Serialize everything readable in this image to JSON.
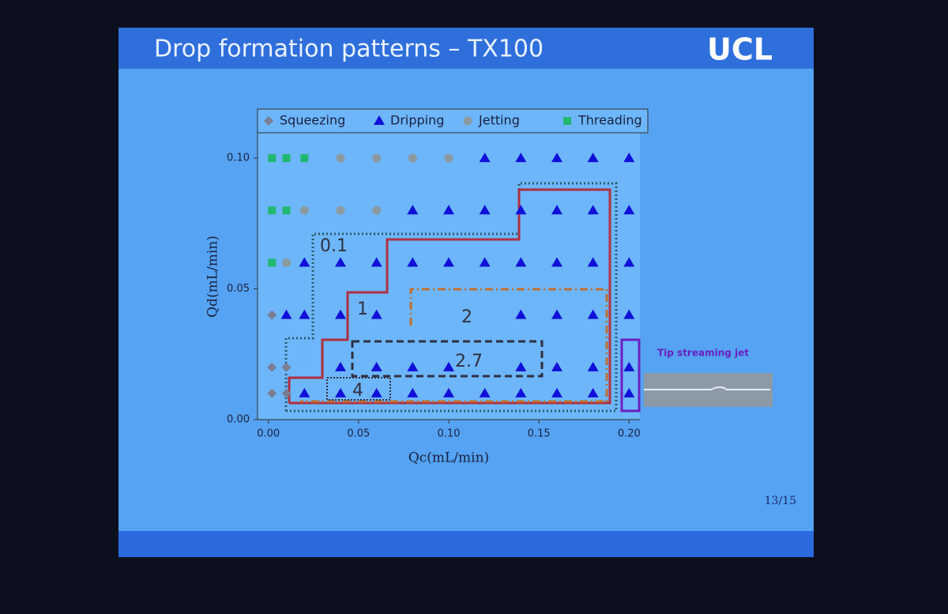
{
  "slide": {
    "title": "Drop formation patterns – TX100",
    "logo": "UCL",
    "page": "13/15",
    "annotation": "Tip streaming jet"
  },
  "chart_data": {
    "type": "scatter",
    "xlabel": "Qc(mL/min)",
    "ylabel": "Qd(mL/min)",
    "xlim": [
      -0.006,
      0.206
    ],
    "ylim": [
      0,
      0.11
    ],
    "xticks": [
      {
        "value": 0,
        "label": "0.00"
      },
      {
        "value": 0.05,
        "label": "0.05"
      },
      {
        "value": 0.1,
        "label": "0.10"
      },
      {
        "value": 0.15,
        "label": "0.15"
      },
      {
        "value": 0.2,
        "label": "0.20"
      }
    ],
    "yticks": [
      {
        "value": 0,
        "label": "0.00"
      },
      {
        "value": 0.05,
        "label": "0.05"
      },
      {
        "value": 0.1,
        "label": "0.10"
      }
    ],
    "legend": "top",
    "region_labels": [
      "0.1",
      "1",
      "2",
      "2.7",
      "4"
    ],
    "series": [
      {
        "name": "Squeezing",
        "color": "#7a7f95",
        "marker": "diamond",
        "x": [
          0.002,
          0.002,
          0.01,
          0.002,
          0.01
        ],
        "values": [
          0.04,
          0.02,
          0.02,
          0.01,
          0.01
        ]
      },
      {
        "name": "Dripping",
        "color": "#1010d8",
        "marker": "triangle",
        "x": [
          0.12,
          0.14,
          0.16,
          0.18,
          0.2,
          0.08,
          0.1,
          0.12,
          0.14,
          0.16,
          0.18,
          0.2,
          0.02,
          0.04,
          0.06,
          0.08,
          0.1,
          0.12,
          0.14,
          0.16,
          0.18,
          0.2,
          0.01,
          0.02,
          0.04,
          0.06,
          0.14,
          0.16,
          0.18,
          0.2,
          0.04,
          0.06,
          0.08,
          0.1,
          0.14,
          0.16,
          0.18,
          0.2,
          0.02,
          0.04,
          0.06,
          0.08,
          0.1,
          0.12,
          0.14,
          0.16,
          0.18,
          0.2
        ],
        "values": [
          0.1,
          0.1,
          0.1,
          0.1,
          0.1,
          0.08,
          0.08,
          0.08,
          0.08,
          0.08,
          0.08,
          0.08,
          0.06,
          0.06,
          0.06,
          0.06,
          0.06,
          0.06,
          0.06,
          0.06,
          0.06,
          0.06,
          0.04,
          0.04,
          0.04,
          0.04,
          0.04,
          0.04,
          0.04,
          0.04,
          0.02,
          0.02,
          0.02,
          0.02,
          0.02,
          0.02,
          0.02,
          0.02,
          0.01,
          0.01,
          0.01,
          0.01,
          0.01,
          0.01,
          0.01,
          0.01,
          0.01,
          0.01
        ]
      },
      {
        "name": "Jetting",
        "color": "#8a9aa0",
        "marker": "circle",
        "x": [
          0.04,
          0.06,
          0.08,
          0.1,
          0.02,
          0.04,
          0.06,
          0.01
        ],
        "values": [
          0.1,
          0.1,
          0.1,
          0.1,
          0.08,
          0.08,
          0.08,
          0.06
        ]
      },
      {
        "name": "Threading",
        "color": "#22b870",
        "marker": "square",
        "x": [
          0.002,
          0.01,
          0.02,
          0.002,
          0.01,
          0.002
        ],
        "values": [
          0.1,
          0.1,
          0.1,
          0.08,
          0.08,
          0.06
        ]
      }
    ]
  }
}
